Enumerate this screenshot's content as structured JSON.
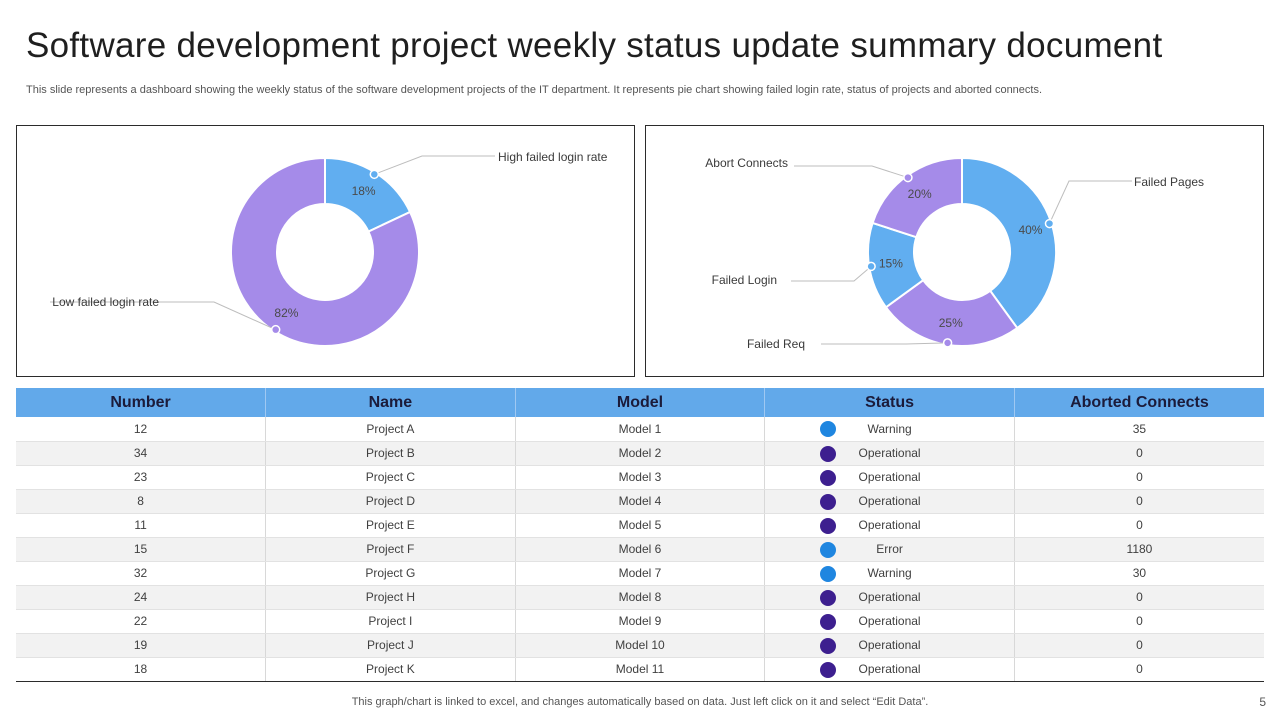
{
  "header": {
    "title": "Software development project weekly status update summary document",
    "subtitle": "This slide represents a dashboard showing the weekly status of the software development projects of the IT  department. It represents pie chart showing failed login rate, status of projects and aborted connects."
  },
  "colors": {
    "blue": "#61aef0",
    "purple": "#a58be9",
    "header_blue": "#62a9ea",
    "status_warning": "#1f86e0",
    "status_error": "#1f86e0",
    "status_operational": "#3d1f8f"
  },
  "chart_data": [
    {
      "type": "pie",
      "variant": "donut",
      "title": "",
      "slices": [
        {
          "label": "High failed login rate",
          "value": 18,
          "value_label": "18%",
          "color": "#61aef0"
        },
        {
          "label": "Low failed login rate",
          "value": 82,
          "value_label": "82%",
          "color": "#a58be9"
        }
      ]
    },
    {
      "type": "pie",
      "variant": "donut",
      "title": "",
      "slices": [
        {
          "label": "Failed Pages",
          "value": 40,
          "value_label": "40%",
          "color": "#61aef0"
        },
        {
          "label": "Failed Req",
          "value": 25,
          "value_label": "25%",
          "color": "#a58be9"
        },
        {
          "label": "Failed Login",
          "value": 15,
          "value_label": "15%",
          "color": "#61aef0"
        },
        {
          "label": "Abort Connects",
          "value": 20,
          "value_label": "20%",
          "color": "#a58be9"
        }
      ]
    },
    {
      "type": "table",
      "columns": [
        "Number",
        "Name",
        "Model",
        "Status",
        "Aborted Connects"
      ],
      "rows": [
        [
          "12",
          "Project A",
          "Model 1",
          "Warning",
          "35"
        ],
        [
          "34",
          "Project B",
          "Model 2",
          "Operational",
          "0"
        ],
        [
          "23",
          "Project C",
          "Model 3",
          "Operational",
          "0"
        ],
        [
          "8",
          "Project D",
          "Model 4",
          "Operational",
          "0"
        ],
        [
          "11",
          "Project E",
          "Model 5",
          "Operational",
          "0"
        ],
        [
          "15",
          "Project F",
          "Model 6",
          "Error",
          "1180"
        ],
        [
          "32",
          "Project G",
          "Model 7",
          "Warning",
          "30"
        ],
        [
          "24",
          "Project H",
          "Model 8",
          "Operational",
          "0"
        ],
        [
          "22",
          "Project I",
          "Model 9",
          "Operational",
          "0"
        ],
        [
          "19",
          "Project J",
          "Model 10",
          "Operational",
          "0"
        ],
        [
          "18",
          "Project K",
          "Model 11",
          "Operational",
          "0"
        ]
      ]
    }
  ],
  "footer": {
    "note": "This graph/chart is linked to excel,  and changes automatically based on data. Just left click on it and select “Edit Data”.",
    "page_number": "5"
  }
}
